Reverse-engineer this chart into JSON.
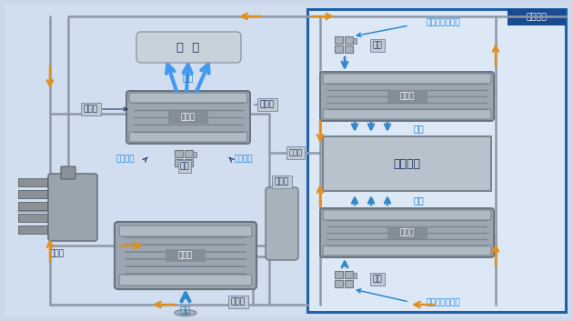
{
  "fig_w": 6.3,
  "fig_h": 3.53,
  "dpi": 100,
  "bg_color": "#ccd8ea",
  "left_bg": "#d8e6f4",
  "bat_box_fill": "#dce8f6",
  "bat_box_border": "#2060a8",
  "bat_label_bg": "#1a4a90",
  "pipe_color": "#9098a8",
  "orange": "#e09020",
  "blue_arrow": "#3388cc",
  "blue_light": "#88bbee",
  "text_blue": "#2080cc",
  "text_dark": "#1a3060",
  "gray_comp": "#a0aab4",
  "gray_dark": "#7a8490",
  "comp_label_evap": "蜁发器",
  "comp_label_cond": "冷凝器",
  "comp_label_bat": "电池单体",
  "comp_label_comp": "压缩机",
  "comp_label_recv": "接收机",
  "comp_label_fan": "风扇",
  "comp_label_anquan": "安全阀",
  "lbl_che_nei": "车  内",
  "lbl_leng_feng": "冷风",
  "lbl_kongtiao": "车内空调",
  "lbl_kongqi": "车内空气",
  "lbl_bat_air": "电池包内的空气",
  "lbl_bat_box": "电池包内"
}
